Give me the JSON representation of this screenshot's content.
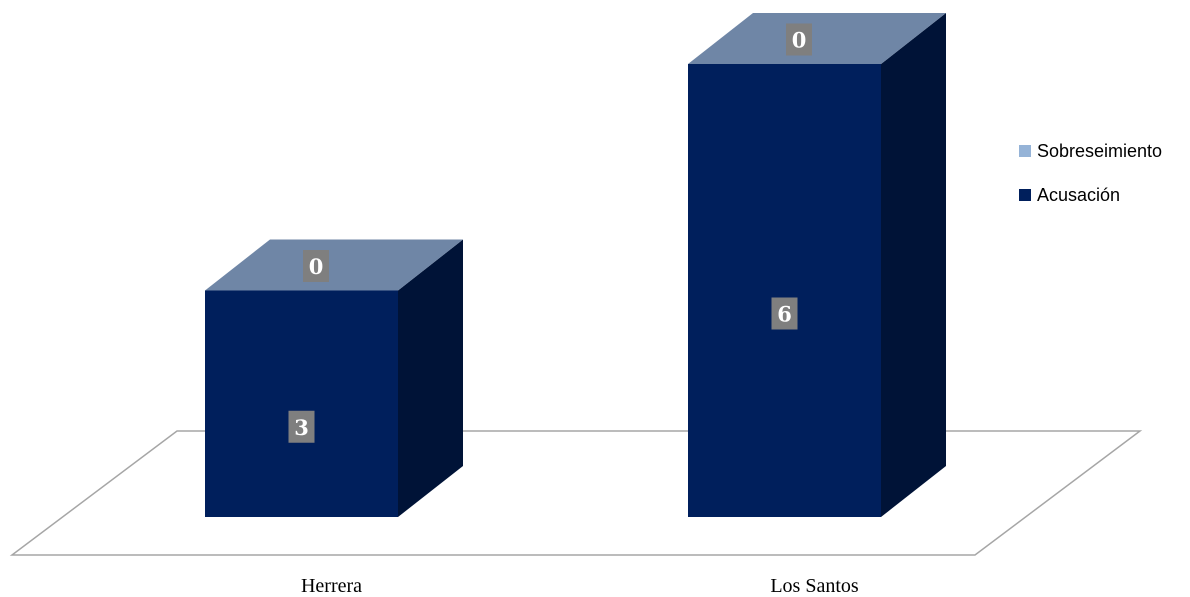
{
  "chart_data": {
    "type": "bar",
    "stacked": true,
    "three_d": true,
    "categories": [
      "Herrera",
      "Los Santos"
    ],
    "series": [
      {
        "name": "Acusación",
        "values": [
          3,
          6
        ],
        "color": "#001f5c"
      },
      {
        "name": "Sobreseimiento",
        "values": [
          0,
          0
        ],
        "color": "#95b3d7"
      }
    ],
    "legend": {
      "position": "right",
      "order": [
        "Sobreseimiento",
        "Acusación"
      ]
    },
    "data_labels": true,
    "grid": false,
    "ylim": [
      0,
      6
    ],
    "title": "",
    "xlabel": "",
    "ylabel": ""
  }
}
